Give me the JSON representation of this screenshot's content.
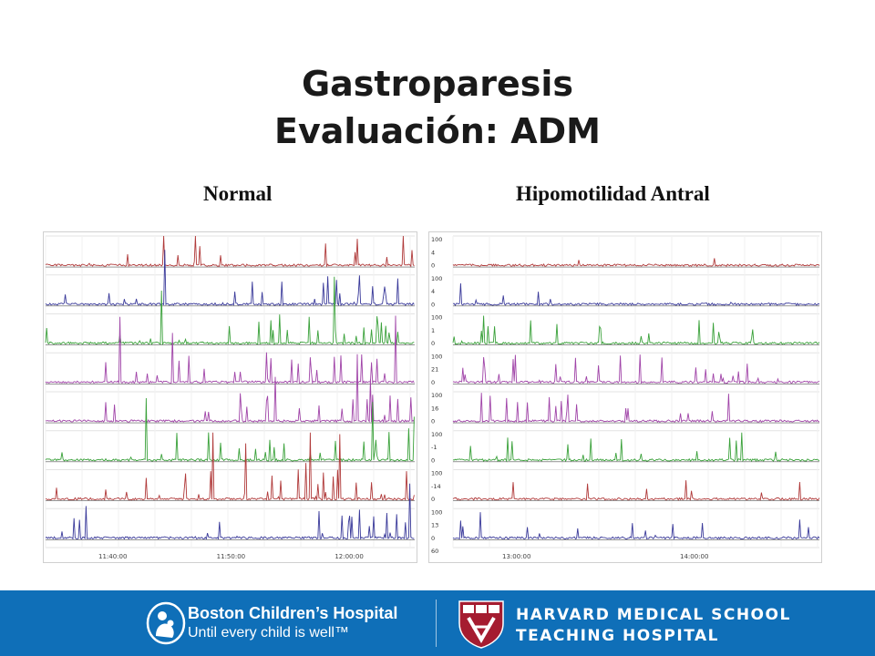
{
  "title": {
    "line1": "Gastroparesis",
    "line2": "Evaluación: ADM"
  },
  "panels": {
    "left": {
      "heading": "Normal",
      "time_labels": [
        "11:40:00",
        "11:50:00",
        "12:00:00"
      ],
      "channel_colors": [
        "#b03a3a",
        "#3a3a9a",
        "#3aa13a",
        "#a044a8",
        "#a044a8",
        "#3aa13a",
        "#b03a3a",
        "#3a3a9a"
      ]
    },
    "right": {
      "heading": "Hipomotilidad Antral",
      "time_labels": [
        "13:00:00",
        "14:00:00"
      ],
      "scale_labels": [
        "100",
        "4",
        "0",
        "100",
        "4",
        "0",
        "100",
        "1",
        "0",
        "100",
        "21",
        "0",
        "100",
        "16",
        "0",
        "100",
        "-1",
        "0",
        "100",
        "-14",
        "0",
        "100",
        "13",
        "0",
        "60"
      ],
      "channel_colors": [
        "#b03a3a",
        "#3a3a9a",
        "#3aa13a",
        "#a044a8",
        "#a044a8",
        "#3aa13a",
        "#b03a3a",
        "#3a3a9a"
      ]
    }
  },
  "footer": {
    "bch_name": "Boston Children’s Hospital",
    "bch_tagline": "Until every child is well™",
    "hms_line1": "HARVARD MEDICAL SCHOOL",
    "hms_line2": "TEACHING HOSPITAL",
    "background": "#0f6fb8"
  }
}
